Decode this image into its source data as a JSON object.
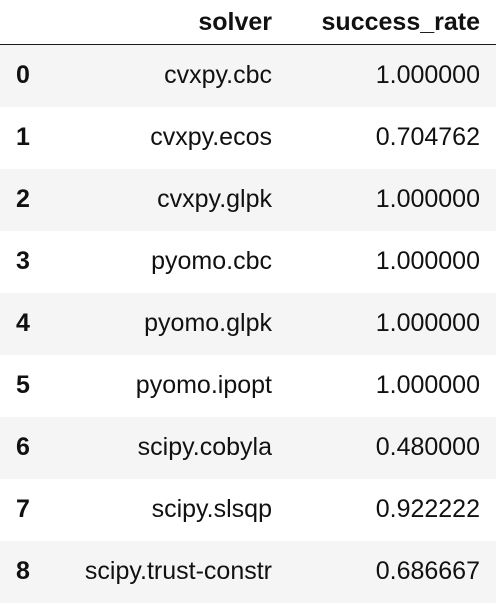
{
  "table": {
    "columns": [
      "",
      "solver",
      "success_rate"
    ],
    "rows": [
      {
        "index": "0",
        "solver": "cvxpy.cbc",
        "success_rate": "1.000000"
      },
      {
        "index": "1",
        "solver": "cvxpy.ecos",
        "success_rate": "0.704762"
      },
      {
        "index": "2",
        "solver": "cvxpy.glpk",
        "success_rate": "1.000000"
      },
      {
        "index": "3",
        "solver": "pyomo.cbc",
        "success_rate": "1.000000"
      },
      {
        "index": "4",
        "solver": "pyomo.glpk",
        "success_rate": "1.000000"
      },
      {
        "index": "5",
        "solver": "pyomo.ipopt",
        "success_rate": "1.000000"
      },
      {
        "index": "6",
        "solver": "scipy.cobyla",
        "success_rate": "0.480000"
      },
      {
        "index": "7",
        "solver": "scipy.slsqp",
        "success_rate": "0.922222"
      },
      {
        "index": "8",
        "solver": "scipy.trust-constr",
        "success_rate": "0.686667"
      }
    ]
  }
}
